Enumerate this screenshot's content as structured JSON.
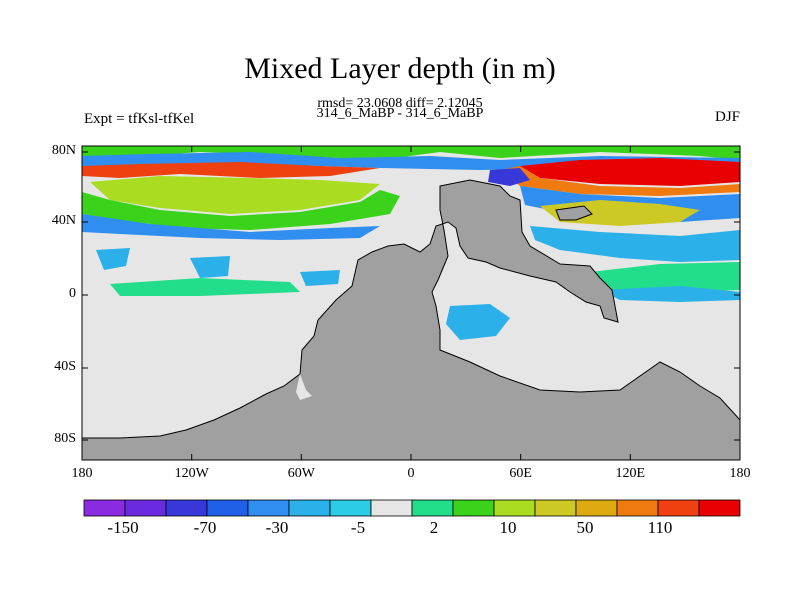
{
  "title": "Mixed Layer depth (in m)",
  "stats_line": "rmsd= 23.0608 diff= 2.12045",
  "subtitle": "314_6_MaBP - 314_6_MaBP",
  "left_label": "Expt = tfKsl-tfKel",
  "right_label": "DJF",
  "lat_ticks": [
    "80N",
    "40N",
    "0",
    "40S",
    "80S"
  ],
  "lon_ticks": [
    "180",
    "120W",
    "60W",
    "0",
    "60E",
    "120E",
    "180"
  ],
  "colorbar": {
    "colors": [
      "#8a2be2",
      "#6a2be0",
      "#3838d8",
      "#2060e8",
      "#2f8ef0",
      "#2bb0ea",
      "#2ccbe6",
      "#e6e6e6",
      "#22dd8c",
      "#3ad21a",
      "#aadd22",
      "#ccc824",
      "#ddaa10",
      "#ee7a10",
      "#ee4010",
      "#e80000"
    ],
    "labels": [
      "-150",
      "-70",
      "-30",
      "-5",
      "2",
      "10",
      "50",
      "110"
    ]
  },
  "map_colors": {
    "land": "#a0a0a0",
    "ocean_neutral": "#e6e6e6",
    "frame": "#000000"
  }
}
